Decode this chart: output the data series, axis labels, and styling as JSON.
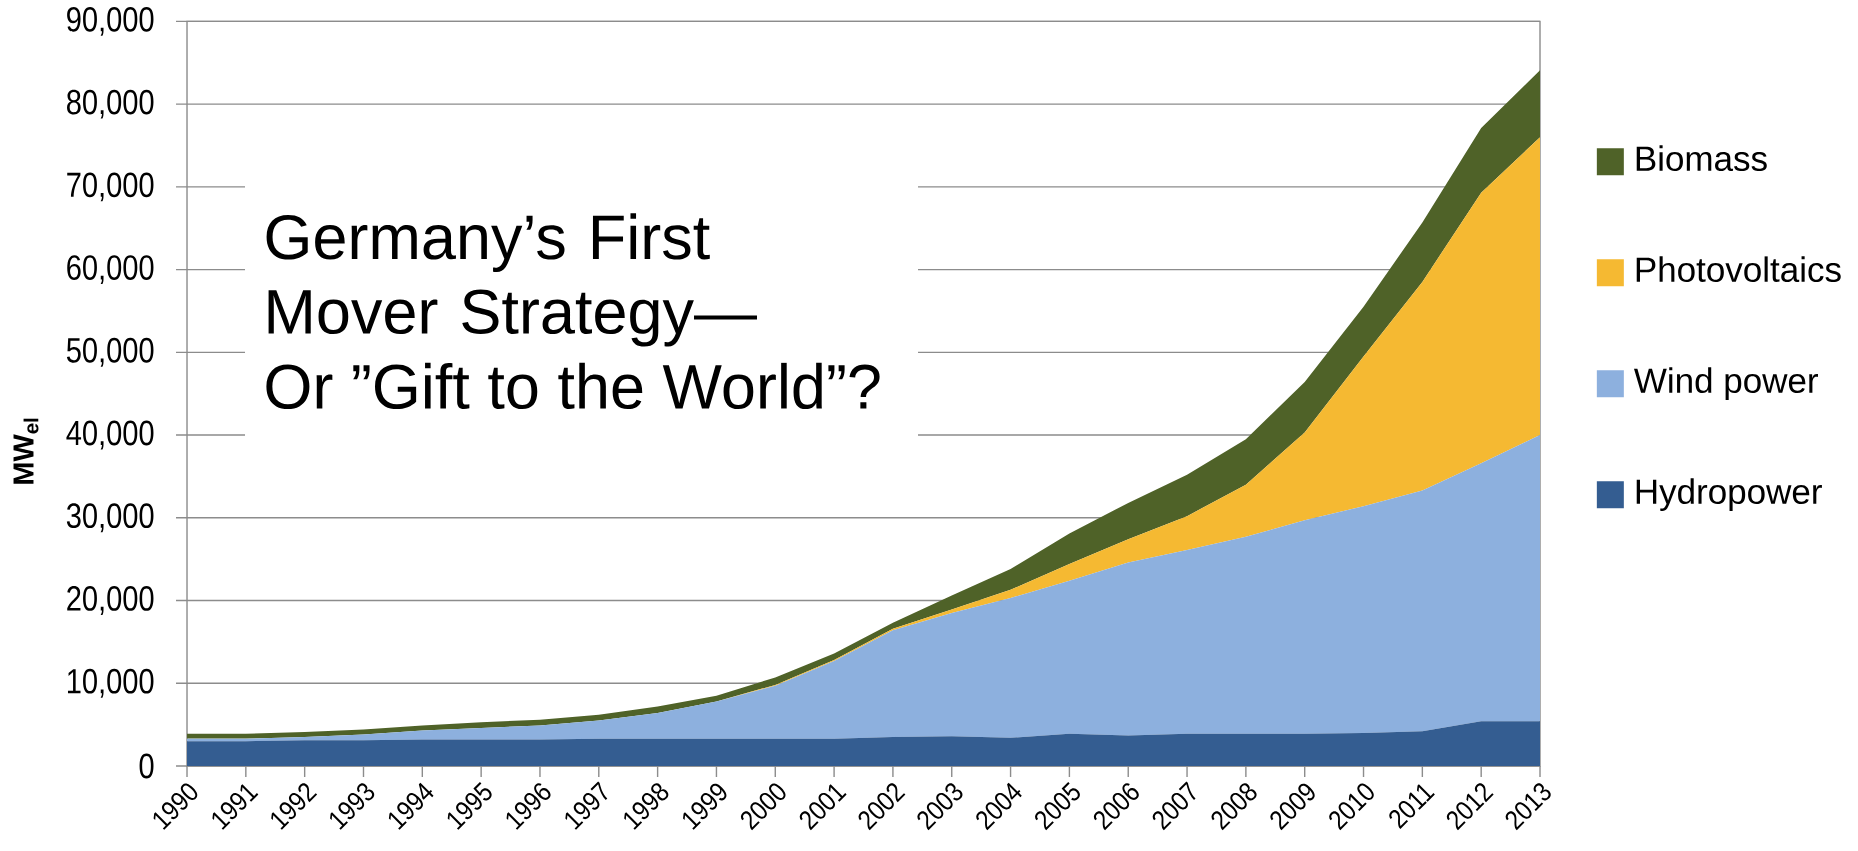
{
  "chart_data": {
    "type": "area",
    "stacked": true,
    "title": "Germany’s First Mover Strategy—",
    "subtitle": "Or ”Gift to the World”?",
    "ylabel": "MW$_{el}$",
    "categories": [
      "1990",
      "1991",
      "1992",
      "1993",
      "1994",
      "1995",
      "1996",
      "1997",
      "1998",
      "1999",
      "2000",
      "2001",
      "2002",
      "2003",
      "2004",
      "2005",
      "2006",
      "2007",
      "2008",
      "2009",
      "2010",
      "2011",
      "2012",
      "2013"
    ],
    "series": [
      {
        "name": "Hydropower",
        "color": "#345d91",
        "values": [
          3000,
          3000,
          3100,
          3100,
          3200,
          3200,
          3200,
          3300,
          3300,
          3300,
          3300,
          3300,
          3500,
          3600,
          3400,
          3900,
          3700,
          3900,
          3900,
          3900,
          4000,
          4200,
          5400,
          5400
        ]
      },
      {
        "name": "Wind power",
        "color": "#8db0de",
        "values": [
          300,
          300,
          400,
          700,
          1100,
          1400,
          1700,
          2200,
          3100,
          4500,
          6400,
          9400,
          12900,
          14900,
          16900,
          18500,
          20900,
          22200,
          23800,
          25800,
          27400,
          29100,
          31200,
          34600
        ]
      },
      {
        "name": "Photovoltaics",
        "color": "#f5b932",
        "values": [
          0,
          0,
          0,
          0,
          0,
          0,
          0,
          0,
          0,
          0,
          100,
          100,
          200,
          400,
          1000,
          2000,
          2800,
          4100,
          6300,
          10600,
          18100,
          25200,
          32700,
          36000
        ]
      },
      {
        "name": "Biomass",
        "color": "#4f6228",
        "values": [
          600,
          600,
          600,
          600,
          600,
          700,
          700,
          700,
          800,
          700,
          900,
          800,
          700,
          1700,
          2500,
          3700,
          4400,
          5000,
          5500,
          6100,
          6000,
          7200,
          7800,
          8100
        ]
      }
    ],
    "ylim": [
      0,
      90000
    ],
    "yticks": [
      0,
      {
        "value": 10000,
        "label": "10,000"
      },
      {
        "value": 20000,
        "label": "20,000"
      },
      {
        "value": 30000,
        "label": "30,000"
      },
      {
        "value": 40000,
        "label": "40,000"
      },
      {
        "value": 50000,
        "label": "50,000"
      },
      {
        "value": 60000,
        "label": "60,000"
      },
      {
        "value": 70000,
        "label": "70,000"
      },
      {
        "value": 80000,
        "label": "80,000"
      },
      {
        "value": 90000,
        "label": "90,000"
      }
    ],
    "grid": "y",
    "legend": "right"
  }
}
